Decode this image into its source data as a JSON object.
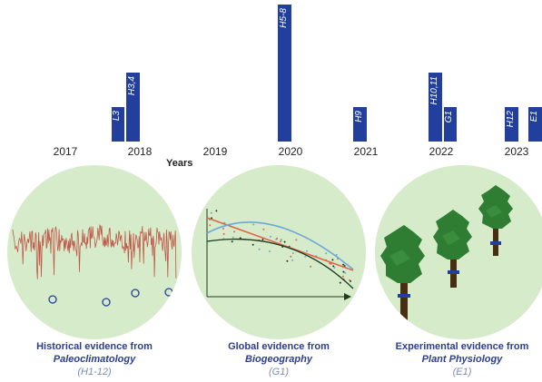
{
  "colors": {
    "bar": "#233f9e",
    "circle_bg": "#d6ebc9",
    "caption": "#2c3e8f",
    "caption_code": "#7d8ab8",
    "paleo_line": "#c0584a",
    "bio_red": "#e0664d",
    "bio_blue": "#6ea8d8",
    "bio_dark": "#1f3b1f",
    "tree": "#2f7d32",
    "trunk": "#4a2e12",
    "band": "#233f9e"
  },
  "timeline": {
    "axis_title": "Years",
    "years": [
      "2017",
      "2018",
      "2019",
      "2020",
      "2021",
      "2022",
      "2023"
    ],
    "bars": [
      {
        "label": "L3",
        "year": 2018,
        "count": 1
      },
      {
        "label": "H3,4",
        "year": 2018,
        "count": 2
      },
      {
        "label": "H5-8",
        "year": 2020,
        "count": 4
      },
      {
        "label": "H9",
        "year": 2021,
        "count": 1
      },
      {
        "label": "H10,11",
        "year": 2022,
        "count": 2
      },
      {
        "label": "G1",
        "year": 2022,
        "count": 1
      },
      {
        "label": "H12",
        "year": 2023,
        "count": 1
      },
      {
        "label": "E1",
        "year": 2023,
        "count": 1
      }
    ]
  },
  "panels": [
    {
      "line1": "Historical evidence from",
      "line2": "Paleoclimatology",
      "line3": "(H1-12)",
      "icon": "paleoclimate-timeseries-icon"
    },
    {
      "line1": "Global evidence from",
      "line2": "Biogeography",
      "line3": "(G1)",
      "icon": "biogeography-scatter-icon"
    },
    {
      "line1": "Experimental evidence from",
      "line2": "Plant Physiology",
      "line3": "(E1)",
      "icon": "trees-icon"
    }
  ]
}
